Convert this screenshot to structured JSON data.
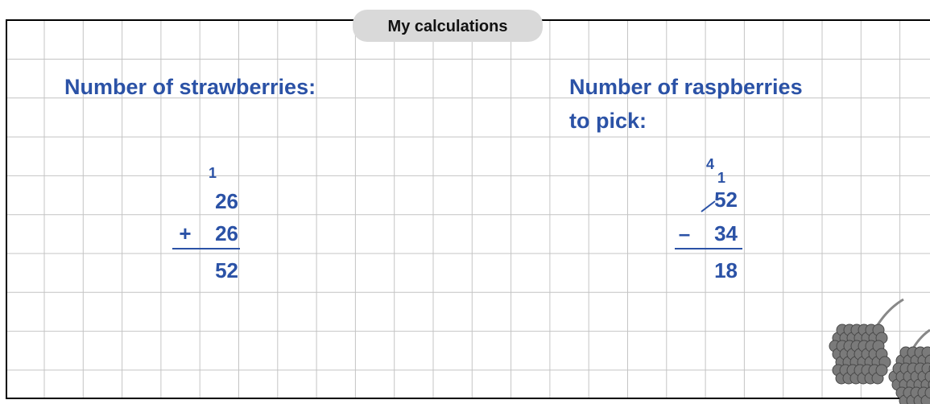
{
  "header": {
    "title": "My calculations"
  },
  "left": {
    "heading": "Number of strawberries:",
    "carry": "1",
    "top": "26",
    "operator": "+",
    "bottom": "26",
    "result": "52"
  },
  "right": {
    "heading_lines": [
      "Number of raspberries",
      "to pick:"
    ],
    "carry": "4",
    "borrow": "1",
    "top": "52",
    "operator": "–",
    "bottom": "34",
    "result": "18"
  }
}
